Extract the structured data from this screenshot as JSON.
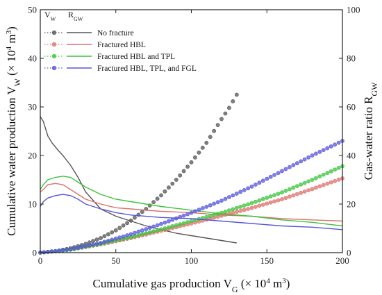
{
  "chart_data": {
    "type": "line",
    "x_axis": {
      "label": "Cumulative gas production V",
      "label_sub": "G",
      "label_unit": " (× 10",
      "label_sup": "4",
      "label_tail": " m",
      "label_sup2": "3",
      "label_close": ")",
      "range": [
        0,
        200
      ],
      "ticks": [
        0,
        50,
        100,
        150,
        200
      ]
    },
    "y_left": {
      "label": "Cumulative water production V",
      "label_sub": "W",
      "label_unit": " (× 10",
      "label_sup": "4",
      "label_tail": " m",
      "label_sup2": "3",
      "label_close": ")",
      "range": [
        0,
        50
      ],
      "ticks": [
        0,
        10,
        20,
        30,
        40,
        50
      ]
    },
    "y_right": {
      "label": "Gas-water ratio R",
      "label_sub": "GW",
      "range": [
        0,
        100
      ],
      "ticks": [
        0,
        20,
        40,
        60,
        80,
        100
      ]
    },
    "legend": {
      "placement": "top-left",
      "head_vw": "V",
      "head_vw_sub": "W",
      "head_rgw": "R",
      "head_rgw_sub": "GW"
    },
    "series": [
      {
        "name": "No fracture",
        "color": "#555555",
        "vw": {
          "x": [
            0,
            10,
            20,
            30,
            40,
            50,
            60,
            70,
            80,
            90,
            100,
            110,
            120,
            125,
            130
          ],
          "y": [
            0,
            0.3,
            0.9,
            1.8,
            3.0,
            4.6,
            6.6,
            9.0,
            11.8,
            15.0,
            18.6,
            22.6,
            27.5,
            29.8,
            32.5
          ]
        },
        "rgw": {
          "x": [
            0,
            2,
            5,
            8,
            12,
            15,
            20,
            25,
            30,
            40,
            50,
            60,
            70,
            80,
            90,
            100,
            110,
            120,
            130
          ],
          "y": [
            56,
            54,
            48,
            45,
            42,
            40,
            36,
            31,
            25,
            18,
            15,
            13,
            11,
            9.5,
            8,
            7,
            6,
            5,
            4
          ]
        }
      },
      {
        "name": "Fractured HBL",
        "color": "#e0706b",
        "vw": {
          "x": [
            0,
            20,
            40,
            60,
            80,
            100,
            120,
            140,
            160,
            180,
            200
          ],
          "y": [
            0,
            0.6,
            1.7,
            3.0,
            4.5,
            6.0,
            7.6,
            9.2,
            11.0,
            13.1,
            15.3
          ]
        },
        "rgw": {
          "x": [
            0,
            2,
            5,
            10,
            15,
            20,
            25,
            30,
            40,
            50,
            60,
            80,
            100,
            120,
            140,
            160,
            180,
            200
          ],
          "y": [
            25,
            26,
            28,
            28.5,
            28,
            26,
            24,
            22,
            20,
            18.5,
            18,
            17,
            16.5,
            15.5,
            15,
            14,
            13.5,
            13
          ]
        }
      },
      {
        "name": "Fractured HBL and TPL",
        "color": "#3cc43c",
        "vw": {
          "x": [
            0,
            20,
            40,
            60,
            80,
            100,
            120,
            140,
            160,
            180,
            200
          ],
          "y": [
            0,
            0.6,
            1.8,
            3.2,
            4.8,
            6.5,
            8.2,
            10.2,
            12.4,
            15.0,
            17.8
          ]
        },
        "rgw": {
          "x": [
            0,
            2,
            5,
            10,
            15,
            20,
            25,
            30,
            40,
            50,
            60,
            80,
            100,
            120,
            140,
            160,
            180,
            200
          ],
          "y": [
            26,
            28,
            30,
            31,
            31.5,
            31,
            29,
            27,
            24,
            22,
            21,
            19,
            17.5,
            16,
            15,
            13.5,
            12.5,
            11
          ]
        }
      },
      {
        "name": "Fractured HBL, TPL, and FGL",
        "color": "#5555dd",
        "vw": {
          "x": [
            0,
            20,
            40,
            60,
            80,
            100,
            120,
            140,
            160,
            180,
            200
          ],
          "y": [
            0,
            0.7,
            2.0,
            3.8,
            5.9,
            8.2,
            10.7,
            13.6,
            16.8,
            20.0,
            23.0
          ]
        },
        "rgw": {
          "x": [
            0,
            2,
            5,
            10,
            15,
            20,
            25,
            30,
            40,
            50,
            60,
            80,
            100,
            120,
            140,
            160,
            180,
            200
          ],
          "y": [
            19,
            21,
            22.5,
            23.5,
            24,
            23.5,
            22,
            20,
            18,
            16.5,
            15.5,
            14.5,
            14,
            13,
            12,
            11,
            10.5,
            9.5
          ]
        }
      }
    ]
  }
}
